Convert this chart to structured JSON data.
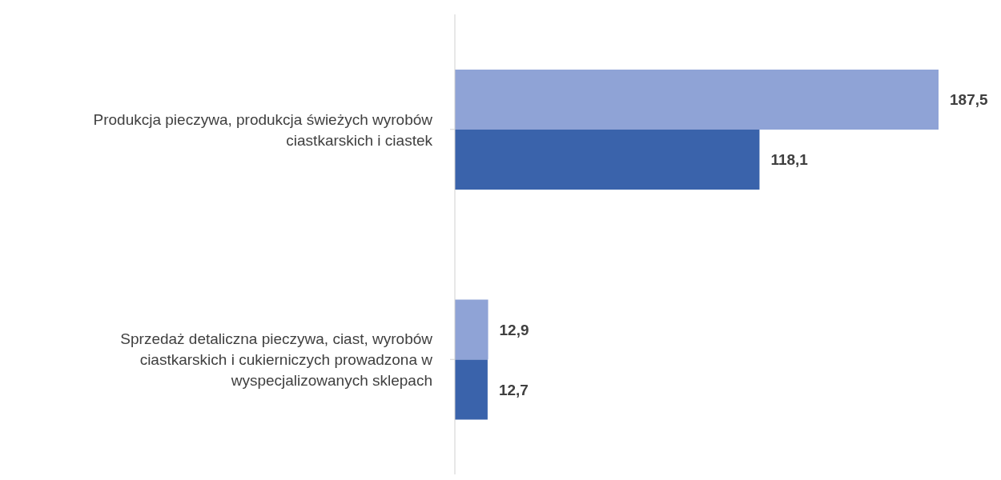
{
  "chart_data": {
    "type": "bar",
    "orientation": "horizontal",
    "categories": [
      "Produkcja pieczywa, produkcja świeżych wyrobów ciastkarskich i ciastek",
      "Sprzedaż detaliczna pieczywa, ciast, wyrobów ciastkarskich i cukierniczych prowadzona w wyspecjalizowanych sklepach"
    ],
    "series": [
      {
        "color": "#8fa3d6",
        "values": [
          187.5,
          12.9
        ],
        "value_labels": [
          "187,5",
          "12,9"
        ]
      },
      {
        "color": "#3a63ab",
        "values": [
          118.1,
          12.7
        ],
        "value_labels": [
          "118,1",
          "12,7"
        ]
      }
    ],
    "tick_labels": "y",
    "grid": false,
    "legend": false
  }
}
